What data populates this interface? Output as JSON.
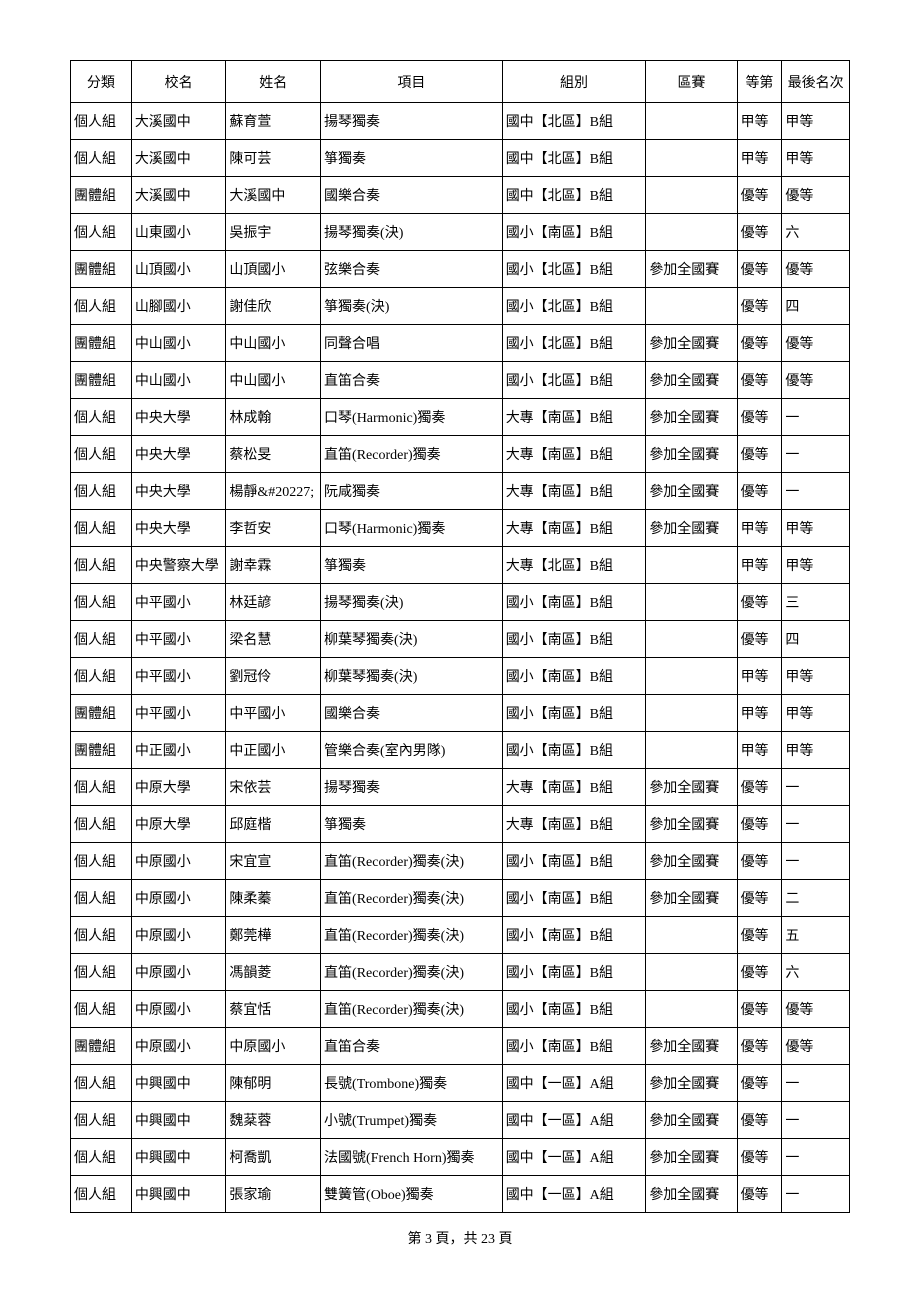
{
  "table": {
    "columns": [
      "分類",
      "校名",
      "姓名",
      "項目",
      "組別",
      "區賽",
      "等第",
      "最後名次"
    ],
    "rows": [
      [
        "個人組",
        "大溪國中",
        "蘇育萱",
        "揚琴獨奏",
        "國中【北區】B組",
        "",
        "甲等",
        "甲等"
      ],
      [
        "個人組",
        "大溪國中",
        "陳可芸",
        "箏獨奏",
        "國中【北區】B組",
        "",
        "甲等",
        "甲等"
      ],
      [
        "團體組",
        "大溪國中",
        "大溪國中",
        "國樂合奏",
        "國中【北區】B組",
        "",
        "優等",
        "優等"
      ],
      [
        "個人組",
        "山東國小",
        "吳振宇",
        "揚琴獨奏(決)",
        "國小【南區】B組",
        "",
        "優等",
        "六"
      ],
      [
        "團體組",
        "山頂國小",
        "山頂國小",
        "弦樂合奏",
        "國小【北區】B組",
        "參加全國賽",
        "優等",
        "優等"
      ],
      [
        "個人組",
        "山腳國小",
        "謝佳欣",
        "箏獨奏(決)",
        "國小【北區】B組",
        "",
        "優等",
        "四"
      ],
      [
        "團體組",
        "中山國小",
        "中山國小",
        "同聲合唱",
        "國小【北區】B組",
        "參加全國賽",
        "優等",
        "優等"
      ],
      [
        "團體組",
        "中山國小",
        "中山國小",
        "直笛合奏",
        "國小【北區】B組",
        "參加全國賽",
        "優等",
        "優等"
      ],
      [
        "個人組",
        "中央大學",
        "林成翰",
        "口琴(Harmonic)獨奏",
        "大專【南區】B組",
        "參加全國賽",
        "優等",
        "一"
      ],
      [
        "個人組",
        "中央大學",
        "蔡松旻",
        "直笛(Recorder)獨奏",
        "大專【南區】B組",
        "參加全國賽",
        "優等",
        "一"
      ],
      [
        "個人組",
        "中央大學",
        "楊靜&#20227;",
        "阮咸獨奏",
        "大專【南區】B組",
        "參加全國賽",
        "優等",
        "一"
      ],
      [
        "個人組",
        "中央大學",
        "李哲安",
        "口琴(Harmonic)獨奏",
        "大專【南區】B組",
        "參加全國賽",
        "甲等",
        "甲等"
      ],
      [
        "個人組",
        "中央警察大學",
        "謝幸霖",
        "箏獨奏",
        "大專【北區】B組",
        "",
        "甲等",
        "甲等"
      ],
      [
        "個人組",
        "中平國小",
        "林廷諺",
        "揚琴獨奏(決)",
        "國小【南區】B組",
        "",
        "優等",
        "三"
      ],
      [
        "個人組",
        "中平國小",
        "梁名慧",
        "柳葉琴獨奏(決)",
        "國小【南區】B組",
        "",
        "優等",
        "四"
      ],
      [
        "個人組",
        "中平國小",
        "劉冠伶",
        "柳葉琴獨奏(決)",
        "國小【南區】B組",
        "",
        "甲等",
        "甲等"
      ],
      [
        "團體組",
        "中平國小",
        "中平國小",
        "國樂合奏",
        "國小【南區】B組",
        "",
        "甲等",
        "甲等"
      ],
      [
        "團體組",
        "中正國小",
        "中正國小",
        "管樂合奏(室內男隊)",
        "國小【南區】B組",
        "",
        "甲等",
        "甲等"
      ],
      [
        "個人組",
        "中原大學",
        "宋依芸",
        "揚琴獨奏",
        "大專【南區】B組",
        "參加全國賽",
        "優等",
        "一"
      ],
      [
        "個人組",
        "中原大學",
        "邱庭楷",
        "箏獨奏",
        "大專【南區】B組",
        "參加全國賽",
        "優等",
        "一"
      ],
      [
        "個人組",
        "中原國小",
        "宋宜宣",
        "直笛(Recorder)獨奏(決)",
        "國小【南區】B組",
        "參加全國賽",
        "優等",
        "一"
      ],
      [
        "個人組",
        "中原國小",
        "陳柔蓁",
        "直笛(Recorder)獨奏(決)",
        "國小【南區】B組",
        "參加全國賽",
        "優等",
        "二"
      ],
      [
        "個人組",
        "中原國小",
        "鄭莞樺",
        "直笛(Recorder)獨奏(決)",
        "國小【南區】B組",
        "",
        "優等",
        "五"
      ],
      [
        "個人組",
        "中原國小",
        "馮韻菱",
        "直笛(Recorder)獨奏(決)",
        "國小【南區】B組",
        "",
        "優等",
        "六"
      ],
      [
        "個人組",
        "中原國小",
        "蔡宜恬",
        "直笛(Recorder)獨奏(決)",
        "國小【南區】B組",
        "",
        "優等",
        "優等"
      ],
      [
        "團體組",
        "中原國小",
        "中原國小",
        "直笛合奏",
        "國小【南區】B組",
        "參加全國賽",
        "優等",
        "優等"
      ],
      [
        "個人組",
        "中興國中",
        "陳郁明",
        "長號(Trombone)獨奏",
        "國中【一區】A組",
        "參加全國賽",
        "優等",
        "一"
      ],
      [
        "個人組",
        "中興國中",
        "魏棻蓉",
        "小號(Trumpet)獨奏",
        "國中【一區】A組",
        "參加全國賽",
        "優等",
        "一"
      ],
      [
        "個人組",
        "中興國中",
        "柯喬凱",
        "法國號(French Horn)獨奏",
        "國中【一區】A組",
        "參加全國賽",
        "優等",
        "一"
      ],
      [
        "個人組",
        "中興國中",
        "張家瑜",
        "雙簧管(Oboe)獨奏",
        "國中【一區】A組",
        "參加全國賽",
        "優等",
        "一"
      ]
    ]
  },
  "footer": {
    "text": "第 3 頁，共 23 頁"
  }
}
